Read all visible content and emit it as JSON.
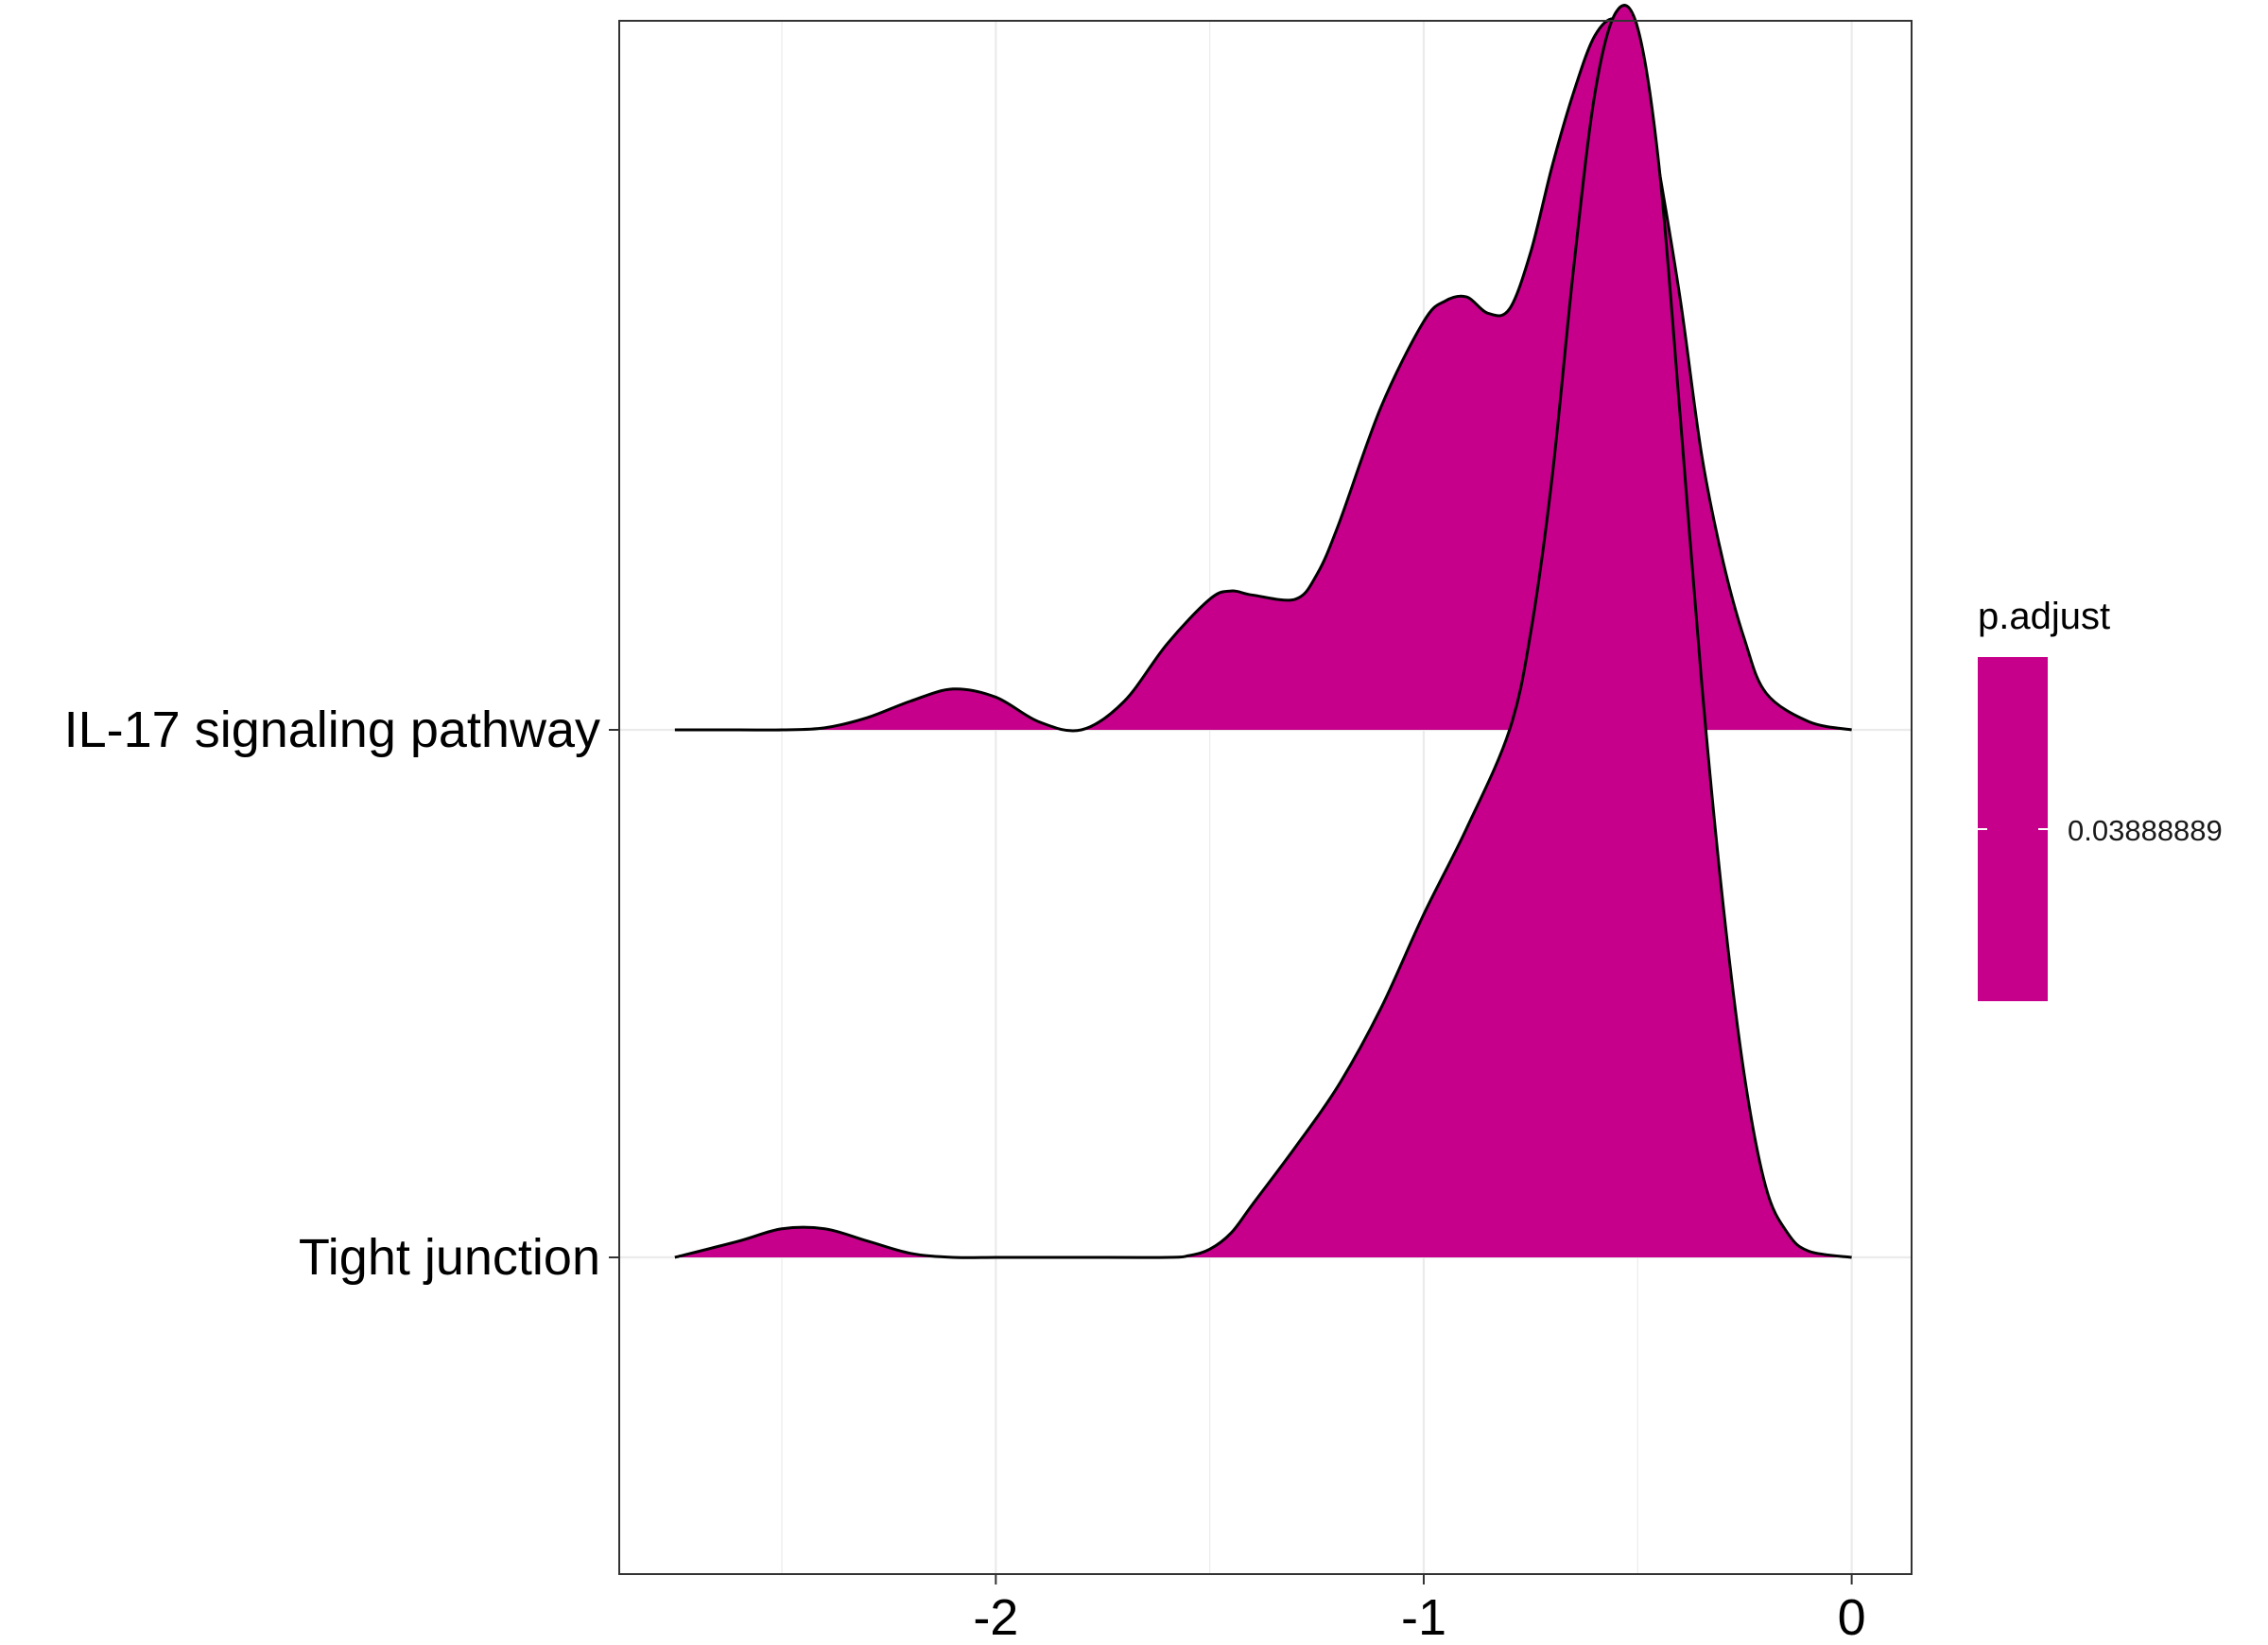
{
  "chart_data": {
    "type": "ridgeline",
    "categories": [
      "IL-17 signaling pathway",
      "Tight junction"
    ],
    "xlim": [
      -2.88,
      0.14
    ],
    "x_ticks": [
      -2,
      -1,
      0
    ],
    "x_tick_labels": [
      "-2",
      "-1",
      "0"
    ],
    "grid": true,
    "fill_color": "#C6008A",
    "legend": {
      "title": "p.adjust",
      "labels": [
        "0.03888889"
      ],
      "position": "right"
    },
    "series": [
      {
        "category": "IL-17 signaling pathway",
        "x": [
          -2.75,
          -2.6,
          -2.5,
          -2.4,
          -2.3,
          -2.2,
          -2.1,
          -2.0,
          -1.9,
          -1.8,
          -1.7,
          -1.6,
          -1.5,
          -1.45,
          -1.4,
          -1.3,
          -1.25,
          -1.2,
          -1.1,
          -1.0,
          -0.95,
          -0.9,
          -0.85,
          -0.8,
          -0.75,
          -0.7,
          -0.65,
          -0.6,
          -0.55,
          -0.5,
          -0.45,
          -0.4,
          -0.35,
          -0.3,
          -0.25,
          -0.2,
          -0.1,
          0.0
        ],
        "density": [
          0.0,
          0.0,
          0.0,
          0.005,
          0.03,
          0.07,
          0.1,
          0.08,
          0.02,
          0.0,
          0.07,
          0.21,
          0.32,
          0.34,
          0.33,
          0.32,
          0.38,
          0.5,
          0.79,
          1.0,
          1.05,
          1.06,
          1.02,
          1.03,
          1.17,
          1.38,
          1.56,
          1.7,
          1.74,
          1.66,
          1.37,
          1.05,
          0.67,
          0.41,
          0.22,
          0.09,
          0.02,
          0.0
        ]
      },
      {
        "category": "Tight junction",
        "x": [
          -2.75,
          -2.6,
          -2.5,
          -2.4,
          -2.3,
          -2.2,
          -2.1,
          -2.0,
          -1.9,
          -1.8,
          -1.6,
          -1.55,
          -1.5,
          -1.45,
          -1.4,
          -1.3,
          -1.2,
          -1.1,
          -1.0,
          -0.9,
          -0.8,
          -0.75,
          -0.7,
          -0.65,
          -0.6,
          -0.55,
          -0.5,
          -0.45,
          -0.4,
          -0.35,
          -0.3,
          -0.25,
          -0.2,
          -0.15,
          -0.1,
          0.0
        ],
        "density": [
          0.0,
          0.04,
          0.07,
          0.07,
          0.04,
          0.01,
          0.0,
          0.0,
          0.0,
          0.0,
          0.0,
          0.004,
          0.02,
          0.06,
          0.13,
          0.27,
          0.42,
          0.61,
          0.84,
          1.05,
          1.29,
          1.53,
          1.91,
          2.42,
          2.85,
          3.05,
          3.01,
          2.67,
          2.05,
          1.4,
          0.86,
          0.44,
          0.17,
          0.06,
          0.015,
          0.0
        ]
      }
    ]
  }
}
